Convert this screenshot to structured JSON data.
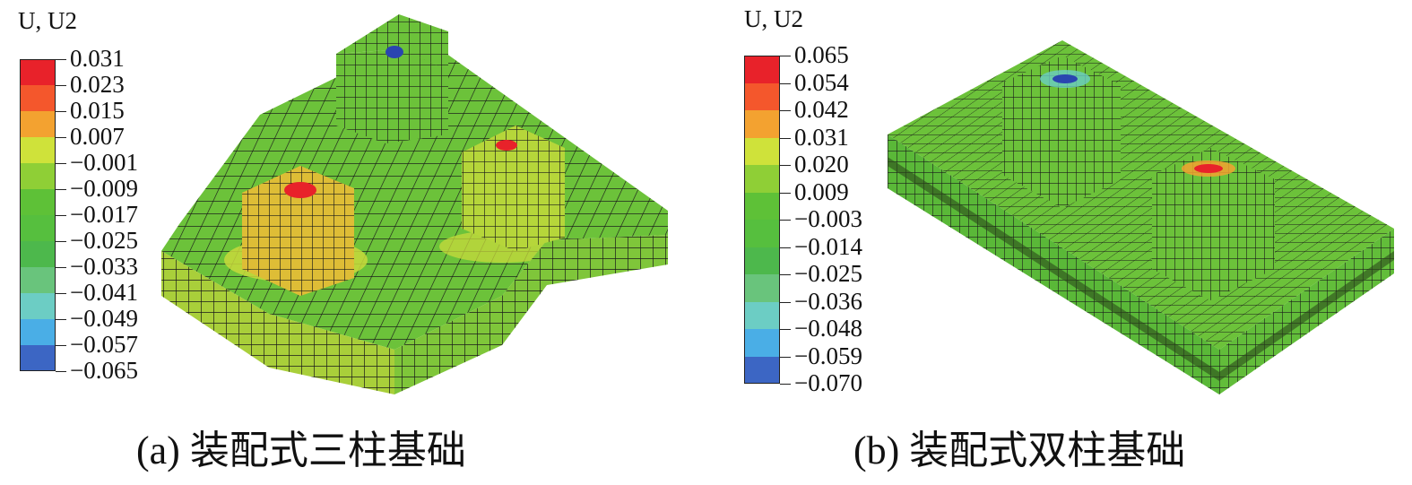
{
  "panels": [
    {
      "legend_title": "U, U2",
      "legend_values": [
        "0.031",
        "0.023",
        "0.015",
        "0.007",
        "−0.001",
        "−0.009",
        "−0.017",
        "−0.025",
        "−0.033",
        "−0.041",
        "−0.049",
        "−0.057",
        "−0.065"
      ],
      "caption": "(a) 装配式三柱基础"
    },
    {
      "legend_title": "U, U2",
      "legend_values": [
        "0.065",
        "0.054",
        "0.042",
        "0.031",
        "0.020",
        "0.009",
        "−0.003",
        "−0.014",
        "−0.025",
        "−0.036",
        "−0.048",
        "−0.059",
        "−0.070"
      ],
      "caption": "(b) 装配式双柱基础"
    }
  ],
  "colors": {
    "legend_bands": [
      "#e8222a",
      "#f4572c",
      "#f3a230",
      "#cfe23a",
      "#8fcf36",
      "#5ec137",
      "#56bf3e",
      "#4db84c",
      "#69c47c",
      "#6ccdc4",
      "#4aaee6",
      "#3c66c4",
      "#2a45b0"
    ],
    "mesh_green": "#6cc23a",
    "mesh_yellow": "#c8d93c",
    "mesh_line": "#1a1a1a",
    "hot": "#e8222a",
    "cold": "#2a45b0"
  }
}
